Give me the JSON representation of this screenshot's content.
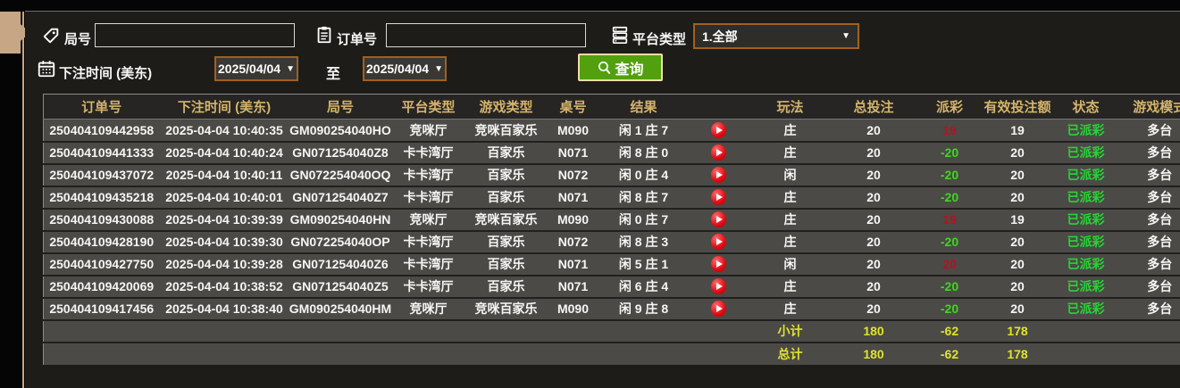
{
  "filters": {
    "game_no_label": "局号",
    "game_no_value": "",
    "order_no_label": "订单号",
    "order_no_value": "",
    "platform_label": "平台类型",
    "platform_value": "1.全部",
    "bet_time_label": "下注时间 (美东)",
    "date_from": "2025/04/04",
    "to_label": "至",
    "date_to": "2025/04/04",
    "search_label": "查询"
  },
  "colors": {
    "accent_tan": "#c7a685",
    "header_gold": "#d5b36b",
    "button_green": "#52a00e",
    "dropdown_border_orange": "#a2601f",
    "payout_win_red": "#b11420",
    "payout_loss_green": "#3ed71d",
    "status_green": "#28d434",
    "totals_yellow": "#dfe32a"
  },
  "table": {
    "headers": [
      "订单号",
      "下注时间 (美东)",
      "局号",
      "平台类型",
      "游戏类型",
      "桌号",
      "结果",
      "",
      "玩法",
      "总投注",
      "派彩",
      "有效投注额",
      "状态",
      "游戏模式"
    ],
    "rows": [
      {
        "order_no": "250404109442958",
        "bet_time": "2025-04-04 10:40:35",
        "game_no": "GM090254040HO",
        "platform": "竞咪厅",
        "game_type": "竞咪百家乐",
        "table_no": "M090",
        "result": "闲 1 庄 7",
        "play": "庄",
        "total_bet": "20",
        "payout": "19",
        "payout_positive": true,
        "valid_bet": "19",
        "status": "已派彩",
        "mode": "多台"
      },
      {
        "order_no": "250404109441333",
        "bet_time": "2025-04-04 10:40:24",
        "game_no": "GN071254040Z8",
        "platform": "卡卡湾厅",
        "game_type": "百家乐",
        "table_no": "N071",
        "result": "闲 8 庄 0",
        "play": "庄",
        "total_bet": "20",
        "payout": "-20",
        "payout_positive": false,
        "valid_bet": "20",
        "status": "已派彩",
        "mode": "多台"
      },
      {
        "order_no": "250404109437072",
        "bet_time": "2025-04-04 10:40:11",
        "game_no": "GN072254040OQ",
        "platform": "卡卡湾厅",
        "game_type": "百家乐",
        "table_no": "N072",
        "result": "闲 0 庄 4",
        "play": "闲",
        "total_bet": "20",
        "payout": "-20",
        "payout_positive": false,
        "valid_bet": "20",
        "status": "已派彩",
        "mode": "多台"
      },
      {
        "order_no": "250404109435218",
        "bet_time": "2025-04-04 10:40:01",
        "game_no": "GN071254040Z7",
        "platform": "卡卡湾厅",
        "game_type": "百家乐",
        "table_no": "N071",
        "result": "闲 8 庄 7",
        "play": "庄",
        "total_bet": "20",
        "payout": "-20",
        "payout_positive": false,
        "valid_bet": "20",
        "status": "已派彩",
        "mode": "多台"
      },
      {
        "order_no": "250404109430088",
        "bet_time": "2025-04-04 10:39:39",
        "game_no": "GM090254040HN",
        "platform": "竞咪厅",
        "game_type": "竞咪百家乐",
        "table_no": "M090",
        "result": "闲 0 庄 7",
        "play": "庄",
        "total_bet": "20",
        "payout": "19",
        "payout_positive": true,
        "valid_bet": "19",
        "status": "已派彩",
        "mode": "多台"
      },
      {
        "order_no": "250404109428190",
        "bet_time": "2025-04-04 10:39:30",
        "game_no": "GN072254040OP",
        "platform": "卡卡湾厅",
        "game_type": "百家乐",
        "table_no": "N072",
        "result": "闲 8 庄 3",
        "play": "庄",
        "total_bet": "20",
        "payout": "-20",
        "payout_positive": false,
        "valid_bet": "20",
        "status": "已派彩",
        "mode": "多台"
      },
      {
        "order_no": "250404109427750",
        "bet_time": "2025-04-04 10:39:28",
        "game_no": "GN071254040Z6",
        "platform": "卡卡湾厅",
        "game_type": "百家乐",
        "table_no": "N071",
        "result": "闲 5 庄 1",
        "play": "闲",
        "total_bet": "20",
        "payout": "20",
        "payout_positive": true,
        "valid_bet": "20",
        "status": "已派彩",
        "mode": "多台"
      },
      {
        "order_no": "250404109420069",
        "bet_time": "2025-04-04 10:38:52",
        "game_no": "GN071254040Z5",
        "platform": "卡卡湾厅",
        "game_type": "百家乐",
        "table_no": "N071",
        "result": "闲 6 庄 4",
        "play": "庄",
        "total_bet": "20",
        "payout": "-20",
        "payout_positive": false,
        "valid_bet": "20",
        "status": "已派彩",
        "mode": "多台"
      },
      {
        "order_no": "250404109417456",
        "bet_time": "2025-04-04 10:38:40",
        "game_no": "GM090254040HM",
        "platform": "竞咪厅",
        "game_type": "竞咪百家乐",
        "table_no": "M090",
        "result": "闲 9 庄 8",
        "play": "庄",
        "total_bet": "20",
        "payout": "-20",
        "payout_positive": false,
        "valid_bet": "20",
        "status": "已派彩",
        "mode": "多台"
      }
    ],
    "subtotal": {
      "label": "小计",
      "total_bet": "180",
      "payout": "-62",
      "valid_bet": "178"
    },
    "total": {
      "label": "总计",
      "total_bet": "180",
      "payout": "-62",
      "valid_bet": "178"
    }
  }
}
